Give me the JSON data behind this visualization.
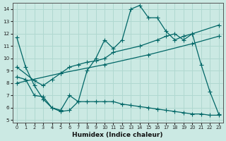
{
  "xlabel": "Humidex (Indice chaleur)",
  "xlim": [
    -0.5,
    23.5
  ],
  "ylim": [
    4.8,
    14.5
  ],
  "yticks": [
    5,
    6,
    7,
    8,
    9,
    10,
    11,
    12,
    13,
    14
  ],
  "xticks": [
    0,
    1,
    2,
    3,
    4,
    5,
    6,
    7,
    8,
    9,
    10,
    11,
    12,
    13,
    14,
    15,
    16,
    17,
    18,
    19,
    20,
    21,
    22,
    23
  ],
  "bg_color": "#cbe9e3",
  "grid_color": "#b0d8d0",
  "line_color": "#006666",
  "series1_x": [
    0,
    1,
    2,
    3,
    4,
    5,
    6,
    7,
    8,
    9,
    10,
    11,
    12,
    13,
    14,
    15,
    16,
    17,
    18,
    19,
    20,
    21,
    22,
    23
  ],
  "series1_y": [
    11.7,
    9.3,
    7.8,
    6.7,
    6.0,
    5.8,
    7.0,
    6.5,
    9.0,
    10.0,
    11.5,
    10.8,
    11.5,
    14.0,
    14.3,
    13.3,
    13.3,
    12.2,
    11.5,
    11.8,
    12.0,
    9.5,
    7.3,
    5.5
  ],
  "series2_x": [
    0,
    1,
    2,
    3,
    4,
    5,
    6,
    7,
    8,
    9,
    10,
    11,
    12,
    13,
    14,
    15,
    16,
    17,
    18,
    19,
    20,
    21,
    22,
    23
  ],
  "series2_y": [
    8.5,
    8.3,
    7.0,
    6.9,
    6.0,
    5.7,
    5.8,
    6.5,
    6.5,
    6.5,
    6.5,
    6.5,
    6.3,
    6.2,
    6.1,
    6.0,
    5.9,
    5.8,
    5.7,
    5.6,
    5.5,
    5.5,
    5.4,
    5.4
  ],
  "series3_x": [
    0,
    2,
    3,
    4,
    5,
    6,
    7,
    8,
    9,
    10,
    11,
    14,
    16,
    17,
    18,
    19,
    20,
    23
  ],
  "series3_y": [
    9.3,
    8.2,
    7.8,
    8.3,
    8.8,
    9.3,
    9.5,
    9.7,
    9.8,
    10.0,
    10.5,
    11.0,
    11.5,
    11.8,
    12.0,
    11.5,
    12.0,
    12.7
  ],
  "series4_x": [
    0,
    5,
    10,
    15,
    20,
    23
  ],
  "series4_y": [
    8.0,
    8.8,
    9.5,
    10.3,
    11.2,
    11.8
  ]
}
